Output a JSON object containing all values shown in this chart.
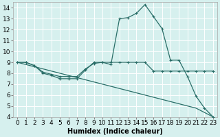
{
  "xlabel": "Humidex (Indice chaleur)",
  "xlim": [
    -0.5,
    23.5
  ],
  "ylim": [
    4,
    14.5
  ],
  "background_color": "#d6f0ee",
  "grid_color": "#ffffff",
  "line_color": "#2a6e68",
  "line1_x": [
    0,
    1,
    2,
    3,
    4,
    5,
    6,
    7,
    8,
    9,
    10,
    11,
    12,
    13,
    14,
    15,
    16,
    17,
    18,
    19,
    20,
    21,
    22,
    23
  ],
  "line1_y": [
    9.0,
    9.0,
    8.7,
    8.0,
    7.8,
    7.5,
    7.5,
    7.5,
    8.3,
    9.0,
    9.0,
    8.8,
    13.0,
    13.1,
    13.5,
    14.3,
    13.2,
    12.1,
    9.2,
    9.2,
    7.7,
    5.9,
    4.8,
    4.0
  ],
  "line2_x": [
    0,
    1,
    2,
    3,
    4,
    5,
    6,
    7,
    8,
    9,
    10,
    11,
    12,
    13,
    14,
    15,
    16,
    17,
    18,
    19,
    20,
    21,
    22,
    23
  ],
  "line2_y": [
    9.0,
    9.0,
    8.7,
    8.1,
    7.9,
    7.7,
    7.7,
    7.7,
    8.4,
    8.9,
    9.0,
    9.0,
    9.0,
    9.0,
    9.0,
    9.0,
    8.2,
    8.2,
    8.2,
    8.2,
    8.2,
    8.2,
    8.2,
    8.2
  ],
  "line3_x": [
    0,
    1,
    2,
    3,
    4,
    5,
    6,
    7,
    8,
    9,
    10,
    11,
    12,
    13,
    14,
    15,
    16,
    17,
    18,
    19,
    20,
    21,
    22,
    23
  ],
  "line3_y": [
    9.0,
    8.8,
    8.6,
    8.4,
    8.2,
    8.0,
    7.8,
    7.6,
    7.4,
    7.2,
    7.0,
    6.8,
    6.6,
    6.4,
    6.2,
    6.0,
    5.8,
    5.6,
    5.4,
    5.2,
    5.0,
    4.8,
    4.4,
    4.0
  ],
  "ytick_values": [
    4,
    5,
    6,
    7,
    8,
    9,
    10,
    11,
    12,
    13,
    14
  ],
  "font_size": 6.5
}
